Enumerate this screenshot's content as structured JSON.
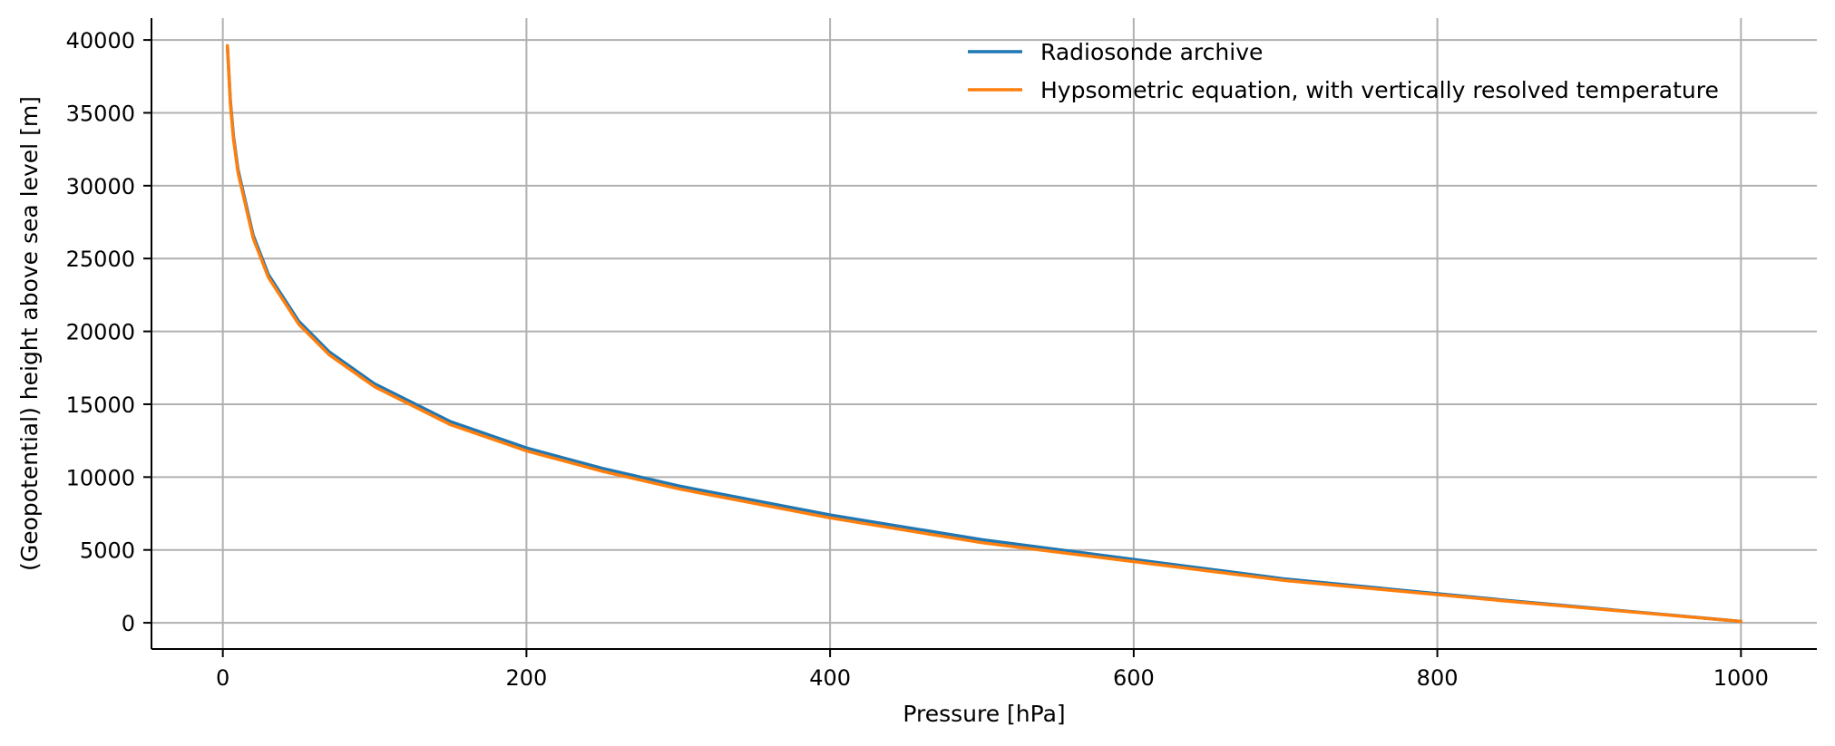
{
  "chart_data": {
    "type": "line",
    "title": "",
    "xlabel": "Pressure [hPa]",
    "ylabel": "(Geopotential) height above sea level [m]",
    "xlim": [
      -47,
      1050
    ],
    "ylim": [
      -1800,
      41500
    ],
    "xticks": [
      0,
      200,
      400,
      600,
      800,
      1000
    ],
    "yticks": [
      0,
      5000,
      10000,
      15000,
      20000,
      25000,
      30000,
      35000,
      40000
    ],
    "xtick_labels": [
      "0",
      "200",
      "400",
      "600",
      "800",
      "1000"
    ],
    "ytick_labels": [
      "0",
      "5000",
      "10000",
      "15000",
      "20000",
      "25000",
      "30000",
      "35000",
      "40000"
    ],
    "grid": true,
    "legend_position": "top-right",
    "series": [
      {
        "name": "Radiosonde archive",
        "color": "#1f77b4",
        "x": [
          3,
          5,
          7,
          10,
          20,
          30,
          50,
          70,
          100,
          150,
          200,
          250,
          300,
          400,
          500,
          700,
          850,
          1000
        ],
        "y": [
          39600,
          35800,
          33400,
          31100,
          26600,
          23900,
          20700,
          18600,
          16400,
          13800,
          12000,
          10600,
          9400,
          7400,
          5700,
          3000,
          1500,
          100
        ]
      },
      {
        "name": "Hypsometric equation, with vertically resolved temperature",
        "color": "#ff7f0e",
        "x": [
          3,
          5,
          7,
          10,
          20,
          30,
          50,
          70,
          100,
          150,
          200,
          250,
          300,
          400,
          500,
          700,
          850,
          1000
        ],
        "y": [
          39600,
          35600,
          33200,
          30900,
          26400,
          23700,
          20500,
          18400,
          16200,
          13600,
          11800,
          10400,
          9200,
          7200,
          5500,
          2900,
          1450,
          100
        ]
      }
    ]
  }
}
